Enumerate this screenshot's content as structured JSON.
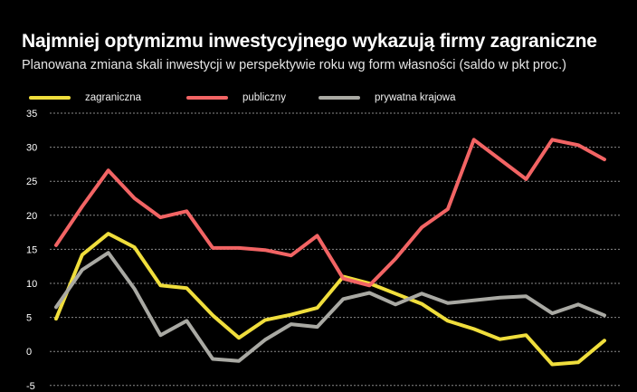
{
  "header": {
    "title": "Najmniej optymizmu inwestycyjnego wykazują firmy zagraniczne",
    "subtitle": "Planowana zmiana skali inwestycji w perspektywie roku wg form własności (saldo w pkt proc.)"
  },
  "colors": {
    "zagraniczna": "#f0de3c",
    "publiczny": "#f26464",
    "prywatna_krajowa": "#a9a9a3",
    "grid": "#8a8a8a",
    "background": "#000000"
  },
  "chart_data": {
    "type": "line",
    "title": "Najmniej optymizmu inwestycyjnego wykazują firmy zagraniczne",
    "subtitle": "Planowana zmiana skali inwestycji w perspektywie roku wg form własności (saldo w pkt proc.)",
    "y_ticks": [
      "35",
      "30",
      "25",
      "20",
      "15",
      "10",
      "5",
      "0",
      "-5"
    ],
    "ylim": [
      -5,
      35
    ],
    "grid": true,
    "legend_position": "top",
    "series": [
      {
        "name": "zagraniczna",
        "color": "#f0de3c",
        "values": [
          4.8,
          14.2,
          17.3,
          15.3,
          9.7,
          9.3,
          5.3,
          2.0,
          4.6,
          5.4,
          6.4,
          11.0,
          10.0,
          8.5,
          7.0,
          4.5,
          3.3,
          1.8,
          2.4,
          -1.9,
          -1.6,
          1.6
        ]
      },
      {
        "name": "publiczny",
        "color": "#f26464",
        "values": [
          15.6,
          21.3,
          26.6,
          22.5,
          19.7,
          20.6,
          15.2,
          15.2,
          14.9,
          14.1,
          17.0,
          10.7,
          9.7,
          13.6,
          18.2,
          20.9,
          31.1,
          28.2,
          25.3,
          31.1,
          30.3,
          28.2
        ]
      },
      {
        "name": "prywatna krajowa",
        "color": "#a9a9a3",
        "values": [
          6.5,
          12.0,
          14.5,
          9.2,
          2.4,
          4.5,
          -1.1,
          -1.4,
          1.7,
          4.0,
          3.6,
          7.7,
          8.6,
          6.9,
          8.5,
          7.1,
          7.5,
          7.9,
          8.1,
          5.6,
          6.9,
          5.3
        ]
      }
    ]
  }
}
